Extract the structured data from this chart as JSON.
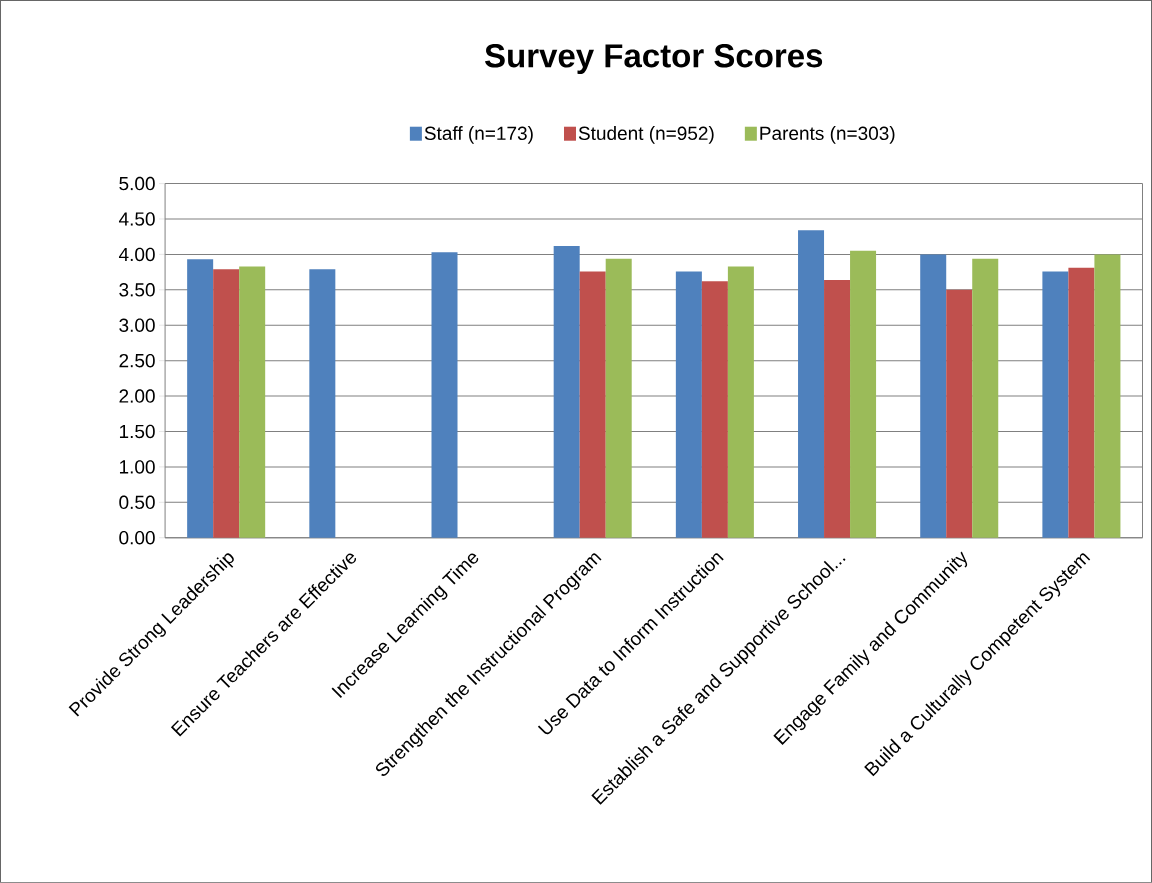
{
  "chart_data": {
    "type": "bar",
    "title": "Survey Factor Scores",
    "categories": [
      "Provide Strong Leadership",
      "Ensure Teachers are Effective",
      "Increase Learning Time",
      "Strengthen the Instructional Program",
      "Use Data to Inform Instruction",
      "Establish a Safe and Supportive School...",
      "Engage Family and Community",
      "Build a Culturally Competent System"
    ],
    "series": [
      {
        "name": "Staff (n=173)",
        "color": "#4f81bd",
        "values": [
          3.93,
          3.79,
          4.03,
          4.12,
          3.76,
          4.34,
          4.0,
          3.76
        ]
      },
      {
        "name": "Student (n=952)",
        "color": "#c0504d",
        "values": [
          3.79,
          null,
          null,
          3.76,
          3.62,
          3.64,
          3.5,
          3.81
        ]
      },
      {
        "name": "Parents (n=303)",
        "color": "#9bbb59",
        "values": [
          3.83,
          null,
          null,
          3.94,
          3.83,
          4.05,
          3.94,
          4.0
        ]
      }
    ],
    "ylim": [
      0,
      5
    ],
    "yticks": [
      {
        "value": 0,
        "label": "0.00"
      },
      {
        "value": 0.5,
        "label": "0.50"
      },
      {
        "value": 1,
        "label": "1.00"
      },
      {
        "value": 1.5,
        "label": "1.50"
      },
      {
        "value": 2,
        "label": "2.00"
      },
      {
        "value": 2.5,
        "label": "2.50"
      },
      {
        "value": 3,
        "label": "3.00"
      },
      {
        "value": 3.5,
        "label": "3.50"
      },
      {
        "value": 4,
        "label": "4.00"
      },
      {
        "value": 4.5,
        "label": "4.50"
      },
      {
        "value": 5,
        "label": "5.00"
      }
    ],
    "grid": "y",
    "legend": "top"
  }
}
